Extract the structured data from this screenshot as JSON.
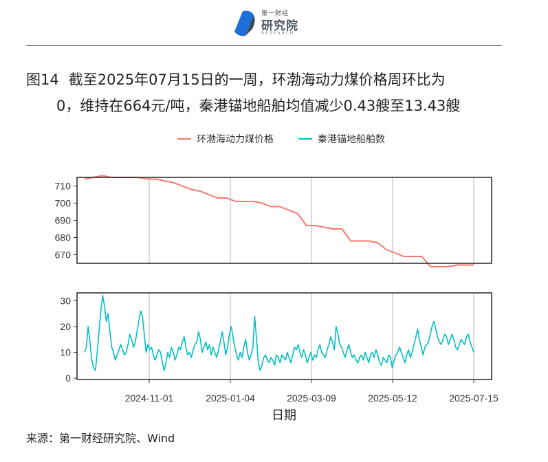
{
  "logo": {
    "small_text": "第一财经",
    "big_text": "研究院",
    "en_text": "RESEARCH",
    "colors": {
      "blue": "#1e6fd9",
      "gray": "#4a5560"
    }
  },
  "title": {
    "number": "图14",
    "line1": "截至2025年07月15日的一周，环渤海动力煤价格周环比为",
    "line2": "0，维持在664元/吨，秦港锚地船舶均值减少0.43艘至13.43艘"
  },
  "legend": [
    {
      "name": "环渤海动力煤价格",
      "color": "#f8766d"
    },
    {
      "name": "秦港锚地船舶数",
      "color": "#00bfc4"
    }
  ],
  "source": "来源：第一财经研究院、Wind",
  "chart_data": [
    {
      "type": "line",
      "series_name": "环渤海动力煤价格",
      "color": "#f8766d",
      "ylim": [
        665,
        715
      ],
      "yticks": [
        670,
        680,
        690,
        700,
        710
      ],
      "x": [
        "2024-09-11",
        "2024-09-18",
        "2024-09-25",
        "2024-10-02",
        "2024-10-09",
        "2024-10-16",
        "2024-10-23",
        "2024-10-30",
        "2024-11-06",
        "2024-11-13",
        "2024-11-20",
        "2024-11-27",
        "2024-12-04",
        "2024-12-11",
        "2024-12-18",
        "2024-12-25",
        "2025-01-01",
        "2025-01-08",
        "2025-01-15",
        "2025-01-22",
        "2025-01-29",
        "2025-02-05",
        "2025-02-12",
        "2025-02-19",
        "2025-02-26",
        "2025-03-05",
        "2025-03-12",
        "2025-03-19",
        "2025-03-26",
        "2025-04-02",
        "2025-04-09",
        "2025-04-16",
        "2025-04-23",
        "2025-04-30",
        "2025-05-07",
        "2025-05-14",
        "2025-05-21",
        "2025-05-28",
        "2025-06-04",
        "2025-06-11",
        "2025-06-18",
        "2025-06-25",
        "2025-07-02",
        "2025-07-09",
        "2025-07-15"
      ],
      "values": [
        714,
        715,
        716,
        715,
        715,
        715,
        715,
        714,
        714,
        713,
        712,
        710,
        708,
        707,
        705,
        703,
        703,
        701,
        701,
        701,
        700,
        698,
        698,
        696,
        694,
        687,
        687,
        686,
        685,
        685,
        678,
        678,
        678,
        677,
        673,
        671,
        669,
        669,
        669,
        663,
        663,
        663,
        664,
        664,
        664
      ]
    },
    {
      "type": "line",
      "series_name": "秦港锚地船舶数",
      "color": "#00bfc4",
      "xlabel": "日期",
      "ylim": [
        -0.5,
        33
      ],
      "yticks": [
        0,
        10,
        20,
        30
      ],
      "xticks": [
        "2024-11-01",
        "2025-01-04",
        "2025-03-09",
        "2025-05-12",
        "2025-07-15"
      ],
      "x_start": "2024-09-11",
      "x_end": "2025-07-15",
      "values": [
        10,
        12,
        20,
        14,
        7,
        4,
        3,
        10,
        18,
        26,
        32,
        28,
        22,
        25,
        18,
        12,
        10,
        7,
        9,
        11,
        13,
        11,
        9,
        10,
        13,
        17,
        15,
        12,
        14,
        18,
        22,
        26,
        24,
        17,
        10,
        13,
        11,
        12,
        9,
        7,
        9,
        11,
        10,
        6,
        3,
        6,
        10,
        8,
        12,
        10,
        7,
        9,
        12,
        11,
        14,
        16,
        12,
        9,
        10,
        8,
        11,
        13,
        14,
        18,
        15,
        10,
        12,
        14,
        11,
        13,
        9,
        12,
        10,
        8,
        11,
        14,
        18,
        14,
        9,
        12,
        17,
        20,
        16,
        12,
        9,
        7,
        10,
        8,
        12,
        15,
        10,
        7,
        9,
        12,
        24,
        15,
        6,
        3,
        5,
        8,
        9,
        7,
        6,
        8,
        7,
        5,
        9,
        8,
        6,
        9,
        8,
        7,
        10,
        8,
        6,
        9,
        12,
        11,
        13,
        10,
        8,
        11,
        9,
        6,
        8,
        10,
        7,
        9,
        8,
        11,
        13,
        10,
        9,
        8,
        11,
        13,
        16,
        14,
        11,
        20,
        17,
        13,
        12,
        10,
        8,
        11,
        13,
        10,
        8,
        9,
        7,
        6,
        8,
        9,
        7,
        10,
        8,
        6,
        9,
        10,
        8,
        11,
        9,
        6,
        5,
        8,
        7,
        6,
        9,
        8,
        4,
        7,
        9,
        10,
        12,
        10,
        8,
        6,
        9,
        11,
        8,
        10,
        13,
        16,
        19,
        15,
        12,
        9,
        12,
        13,
        14,
        17,
        20,
        22,
        19,
        16,
        14,
        13,
        15,
        17,
        16,
        13,
        15,
        17,
        15,
        12,
        11,
        13,
        15,
        14,
        13,
        16,
        17,
        14,
        12,
        10
      ]
    }
  ]
}
